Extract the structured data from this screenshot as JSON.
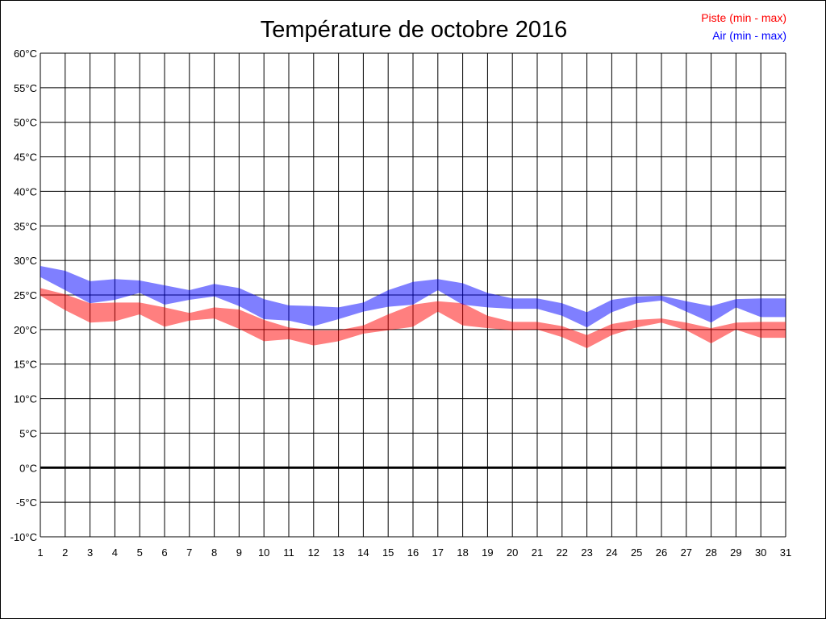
{
  "chart_data": {
    "type": "area",
    "title": "Température de octobre 2016",
    "xlabel": "",
    "ylabel": "",
    "x": [
      1,
      2,
      3,
      4,
      5,
      6,
      7,
      8,
      9,
      10,
      11,
      12,
      13,
      14,
      15,
      16,
      17,
      18,
      19,
      20,
      21,
      22,
      23,
      24,
      25,
      26,
      27,
      28,
      29,
      30,
      31
    ],
    "x_tick_labels": [
      "1",
      "2",
      "3",
      "4",
      "5",
      "6",
      "7",
      "8",
      "9",
      "10",
      "11",
      "12",
      "13",
      "14",
      "15",
      "16",
      "17",
      "18",
      "19",
      "20",
      "21",
      "22",
      "23",
      "24",
      "25",
      "26",
      "27",
      "28",
      "29",
      "30",
      "31"
    ],
    "ylim": [
      -10,
      60
    ],
    "y_ticks": [
      -10,
      -5,
      0,
      5,
      10,
      15,
      20,
      25,
      30,
      35,
      40,
      45,
      50,
      55,
      60
    ],
    "y_tick_labels": [
      "-10°C",
      "-5°C",
      "0°C",
      "5°C",
      "10°C",
      "15°C",
      "20°C",
      "25°C",
      "30°C",
      "35°C",
      "40°C",
      "45°C",
      "50°C",
      "55°C",
      "60°C"
    ],
    "grid": true,
    "legend_position": "top-right",
    "series": [
      {
        "name": "Piste (min - max)",
        "color": "#ff0000",
        "min": [
          24.9,
          22.8,
          21.0,
          21.2,
          22.2,
          20.4,
          21.3,
          21.6,
          20.1,
          18.3,
          18.6,
          17.7,
          18.3,
          19.4,
          19.9,
          20.4,
          22.6,
          20.6,
          20.2,
          19.9,
          20.0,
          18.9,
          17.3,
          19.2,
          20.3,
          21.0,
          19.9,
          18.0,
          20.0,
          18.8,
          18.8
        ],
        "max": [
          26.0,
          25.1,
          23.8,
          23.9,
          23.9,
          23.2,
          22.4,
          23.2,
          22.9,
          21.4,
          20.3,
          19.9,
          19.9,
          20.6,
          22.2,
          23.6,
          24.1,
          23.8,
          22.0,
          21.1,
          21.1,
          20.5,
          19.2,
          20.8,
          21.4,
          21.6,
          21.0,
          20.2,
          21.0,
          21.1,
          21.1
        ]
      },
      {
        "name": "Air (min - max)",
        "color": "#0000ff",
        "min": [
          27.6,
          25.7,
          23.8,
          24.3,
          25.3,
          23.6,
          24.3,
          24.8,
          23.4,
          21.5,
          21.3,
          20.5,
          21.5,
          22.6,
          23.3,
          23.6,
          25.7,
          23.6,
          23.2,
          23.0,
          23.0,
          22.0,
          20.3,
          22.5,
          23.8,
          24.2,
          22.6,
          21.0,
          23.2,
          21.8,
          21.8
        ],
        "max": [
          29.2,
          28.5,
          27.0,
          27.3,
          27.1,
          26.4,
          25.7,
          26.6,
          26.0,
          24.4,
          23.5,
          23.4,
          23.2,
          23.9,
          25.7,
          26.9,
          27.3,
          26.7,
          25.3,
          24.5,
          24.5,
          23.8,
          22.5,
          24.3,
          24.8,
          24.9,
          24.1,
          23.4,
          24.4,
          24.5,
          24.5
        ]
      }
    ]
  }
}
